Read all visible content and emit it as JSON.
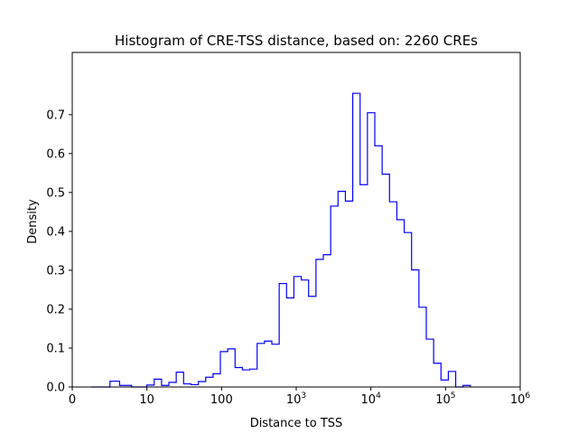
{
  "chart_data": {
    "type": "histogram-step",
    "title": "Histogram of CRE-TSS distance, based on: 2260 CREs",
    "xlabel": "Distance to TSS",
    "ylabel": "Density",
    "x_scale": "symlog",
    "xlim": [
      0,
      1000000
    ],
    "ylim": [
      0,
      0.86
    ],
    "grid": false,
    "legend": "none",
    "series_color": "#0000ff",
    "x_ticks": [
      {
        "value": 0,
        "label": "0"
      },
      {
        "value": 10,
        "label": "10"
      },
      {
        "value": 100,
        "label": "100"
      },
      {
        "value": 1000,
        "label": "10",
        "exp": "3"
      },
      {
        "value": 10000,
        "label": "10",
        "exp": "4"
      },
      {
        "value": 100000,
        "label": "10",
        "exp": "5"
      },
      {
        "value": 1000000,
        "label": "10",
        "exp": "6"
      }
    ],
    "y_ticks": [
      {
        "value": 0.0,
        "label": "0.0"
      },
      {
        "value": 0.1,
        "label": "0.1"
      },
      {
        "value": 0.2,
        "label": "0.2"
      },
      {
        "value": 0.3,
        "label": "0.3"
      },
      {
        "value": 0.4,
        "label": "0.4"
      },
      {
        "value": 0.5,
        "label": "0.5"
      },
      {
        "value": 0.6,
        "label": "0.6"
      },
      {
        "value": 0.7,
        "label": "0.7"
      }
    ],
    "bins_start": 2.56,
    "bin_edges_log10_start": 0.408,
    "bin_width_log10": 0.0985,
    "densities": [
      0.0,
      0.0,
      0.0,
      0.015,
      0.004,
      0.0,
      0.005,
      0.02,
      0.004,
      0.012,
      0.038,
      0.008,
      0.006,
      0.014,
      0.025,
      0.034,
      0.091,
      0.098,
      0.05,
      0.044,
      0.046,
      0.112,
      0.118,
      0.11,
      0.266,
      0.229,
      0.284,
      0.275,
      0.233,
      0.328,
      0.34,
      0.465,
      0.503,
      0.478,
      0.755,
      0.52,
      0.705,
      0.62,
      0.547,
      0.476,
      0.43,
      0.397,
      0.301,
      0.205,
      0.123,
      0.061,
      0.018,
      0.04,
      0.0,
      0.004
    ]
  }
}
